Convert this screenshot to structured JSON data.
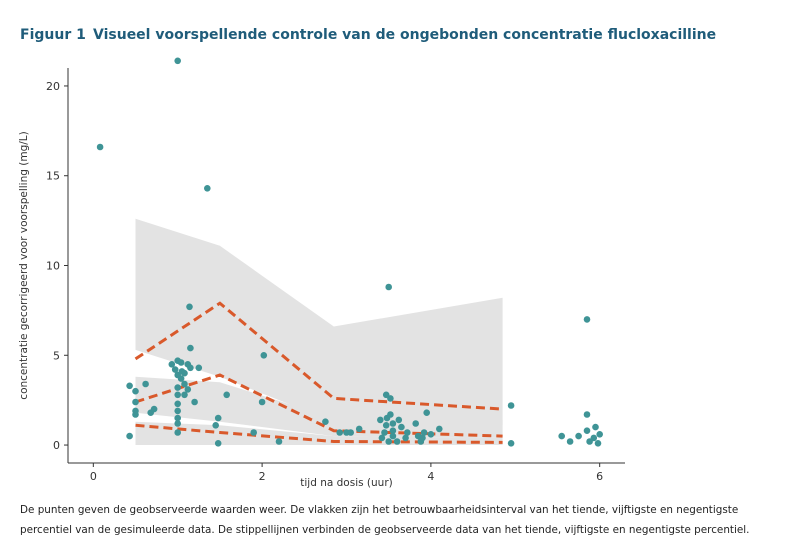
{
  "figure": {
    "label": "Figuur 1",
    "title": "Visueel voorspellende controle van de ongebonden concentratie flucloxacilline"
  },
  "caption": "De punten geven de geobserveerde waarden weer. De vlakken zijn het betrouwbaarheidsinterval van het tiende, vijftigste en negentigste percentiel van de gesimuleerde data. De stippellijnen verbinden de geobserveerde data van het tiende, vijftigste en negentigste percentiel.",
  "colors": {
    "points": "#3f9496",
    "lines": "#d9592b",
    "bands": "#e3e3e3",
    "title": "#1f5c7a"
  },
  "chart_data": {
    "type": "scatter",
    "xlabel": "tijd na dosis (uur)",
    "ylabel": "concentratie gecorrigeerd voor voorspelling (mg/L)",
    "xlim": [
      -0.3,
      6.3
    ],
    "ylim": [
      -1,
      21
    ],
    "xticks": [
      0,
      2,
      4,
      6
    ],
    "yticks": [
      0,
      5,
      10,
      15,
      20
    ],
    "grid": false,
    "points": [
      [
        0.08,
        16.6
      ],
      [
        0.43,
        3.3
      ],
      [
        0.43,
        0.5
      ],
      [
        0.5,
        1.7
      ],
      [
        0.5,
        1.9
      ],
      [
        0.5,
        2.4
      ],
      [
        0.5,
        3.0
      ],
      [
        0.62,
        3.4
      ],
      [
        0.68,
        1.8
      ],
      [
        0.72,
        2.0
      ],
      [
        0.93,
        4.5
      ],
      [
        0.97,
        4.2
      ],
      [
        1.0,
        4.7
      ],
      [
        1.0,
        3.9
      ],
      [
        1.0,
        3.2
      ],
      [
        1.0,
        2.8
      ],
      [
        1.0,
        2.3
      ],
      [
        1.0,
        1.9
      ],
      [
        1.0,
        1.5
      ],
      [
        1.0,
        1.2
      ],
      [
        1.0,
        0.7
      ],
      [
        1.0,
        21.4
      ],
      [
        1.04,
        4.6
      ],
      [
        1.04,
        3.7
      ],
      [
        1.05,
        4.1
      ],
      [
        1.08,
        4.0
      ],
      [
        1.08,
        3.4
      ],
      [
        1.08,
        2.8
      ],
      [
        1.12,
        4.5
      ],
      [
        1.12,
        3.1
      ],
      [
        1.14,
        7.7
      ],
      [
        1.15,
        5.4
      ],
      [
        1.15,
        4.3
      ],
      [
        1.2,
        2.4
      ],
      [
        1.25,
        4.3
      ],
      [
        1.35,
        14.3
      ],
      [
        1.45,
        1.1
      ],
      [
        1.48,
        1.5
      ],
      [
        1.48,
        0.1
      ],
      [
        1.58,
        2.8
      ],
      [
        1.9,
        0.7
      ],
      [
        2.0,
        2.4
      ],
      [
        2.02,
        5.0
      ],
      [
        2.2,
        0.2
      ],
      [
        2.75,
        1.3
      ],
      [
        2.92,
        0.7
      ],
      [
        3.0,
        0.7
      ],
      [
        3.05,
        0.7
      ],
      [
        3.15,
        0.9
      ],
      [
        3.4,
        1.4
      ],
      [
        3.42,
        0.4
      ],
      [
        3.45,
        0.7
      ],
      [
        3.47,
        1.1
      ],
      [
        3.47,
        2.8
      ],
      [
        3.48,
        1.5
      ],
      [
        3.5,
        8.8
      ],
      [
        3.5,
        0.2
      ],
      [
        3.52,
        1.7
      ],
      [
        3.52,
        2.6
      ],
      [
        3.55,
        0.8
      ],
      [
        3.55,
        0.5
      ],
      [
        3.55,
        1.2
      ],
      [
        3.6,
        0.2
      ],
      [
        3.62,
        1.4
      ],
      [
        3.65,
        1.0
      ],
      [
        3.7,
        0.4
      ],
      [
        3.72,
        0.7
      ],
      [
        3.82,
        1.2
      ],
      [
        3.85,
        0.5
      ],
      [
        3.88,
        0.2
      ],
      [
        3.9,
        0.4
      ],
      [
        3.92,
        0.7
      ],
      [
        3.95,
        1.8
      ],
      [
        4.0,
        0.6
      ],
      [
        4.1,
        0.9
      ],
      [
        4.95,
        2.2
      ],
      [
        4.95,
        0.1
      ],
      [
        5.55,
        0.5
      ],
      [
        5.65,
        0.2
      ],
      [
        5.75,
        0.5
      ],
      [
        5.85,
        7.0
      ],
      [
        5.85,
        1.7
      ],
      [
        5.85,
        0.8
      ],
      [
        5.88,
        0.2
      ],
      [
        5.93,
        0.4
      ],
      [
        5.95,
        1.0
      ],
      [
        5.98,
        0.1
      ],
      [
        6.0,
        0.6
      ]
    ],
    "bands": [
      {
        "x": [
          0.5,
          1.5,
          2.85,
          4.85
        ],
        "low": [
          5.3,
          3.8,
          1.3,
          1.1
        ],
        "high": [
          12.6,
          11.1,
          6.6,
          8.2
        ]
      },
      {
        "x": [
          0.5,
          1.5,
          2.85,
          4.85
        ],
        "low": [
          1.8,
          1.3,
          0.5,
          0.4
        ],
        "high": [
          3.8,
          3.5,
          1.5,
          1.4
        ]
      },
      {
        "x": [
          0.5,
          1.5,
          2.85,
          4.85
        ],
        "low": [
          0.0,
          0.0,
          0.0,
          0.0
        ],
        "high": [
          1.3,
          1.1,
          0.5,
          0.4
        ]
      }
    ],
    "lines": [
      {
        "x": [
          0.5,
          1.5,
          2.85,
          4.85
        ],
        "y": [
          4.8,
          7.9,
          2.6,
          2.0
        ]
      },
      {
        "x": [
          0.5,
          1.5,
          2.85,
          4.85
        ],
        "y": [
          2.4,
          3.9,
          0.8,
          0.5
        ]
      },
      {
        "x": [
          0.5,
          1.5,
          2.85,
          4.85
        ],
        "y": [
          1.1,
          0.7,
          0.2,
          0.15
        ]
      }
    ]
  }
}
